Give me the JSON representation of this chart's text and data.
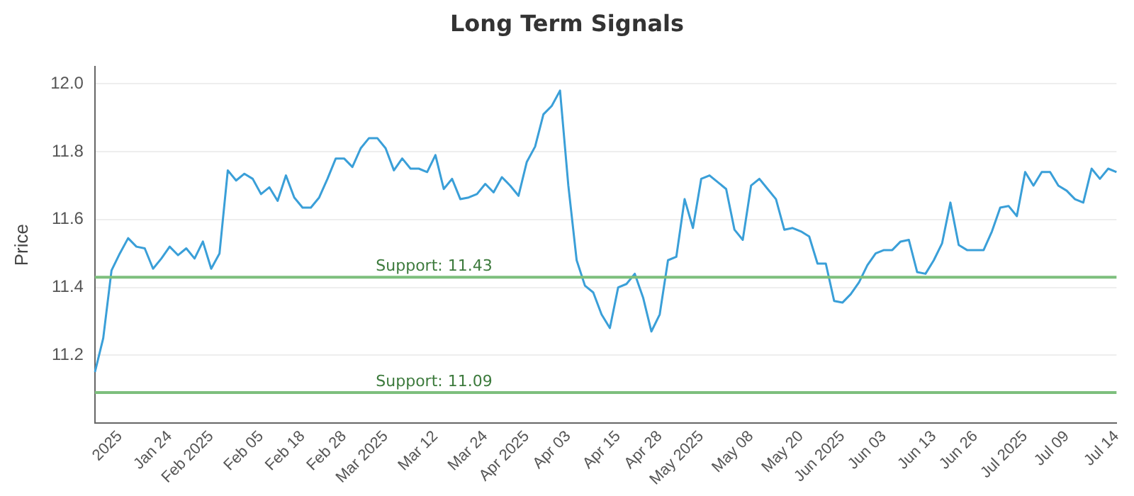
{
  "chart_data": {
    "type": "line",
    "title": "Long Term Signals",
    "ylabel": "Price",
    "categories": [
      null,
      null,
      null,
      "2025",
      null,
      null,
      null,
      null,
      null,
      "Jan 24",
      null,
      null,
      null,
      null,
      "Feb 2025",
      null,
      null,
      null,
      null,
      null,
      "Feb 05",
      null,
      null,
      null,
      null,
      "Feb 18",
      null,
      null,
      null,
      null,
      "Feb 28",
      null,
      null,
      null,
      null,
      "Mar 2025",
      null,
      null,
      null,
      null,
      null,
      "Mar 12",
      null,
      null,
      null,
      null,
      null,
      "Mar 24",
      null,
      null,
      null,
      null,
      "Apr 2025",
      null,
      null,
      null,
      null,
      "Apr 03",
      null,
      null,
      null,
      null,
      null,
      "Apr 15",
      null,
      null,
      null,
      null,
      "Apr 28",
      null,
      null,
      null,
      null,
      "May 2025",
      null,
      null,
      null,
      null,
      null,
      "May 08",
      null,
      null,
      null,
      null,
      null,
      "May 20",
      null,
      null,
      null,
      null,
      "Jun 2025",
      null,
      null,
      null,
      null,
      "Jun 03",
      null,
      null,
      null,
      null,
      null,
      "Jun 13",
      null,
      null,
      null,
      null,
      "Jun 26",
      null,
      null,
      null,
      null,
      null,
      "Jul 2025",
      null,
      null,
      null,
      null,
      "Jul 09",
      null,
      null,
      null,
      null,
      null,
      "Jul 14"
    ],
    "series": [
      {
        "color": "#3a9fd8",
        "values": [
          11.15,
          11.25,
          11.45,
          11.5,
          11.545,
          11.52,
          11.515,
          11.455,
          11.485,
          11.52,
          11.495,
          11.515,
          11.485,
          11.535,
          11.455,
          11.5,
          11.745,
          11.715,
          11.735,
          11.72,
          11.675,
          11.695,
          11.655,
          11.73,
          11.665,
          11.635,
          11.635,
          11.665,
          11.72,
          11.78,
          11.78,
          11.755,
          11.81,
          11.84,
          11.84,
          11.81,
          11.745,
          11.78,
          11.75,
          11.75,
          11.74,
          11.79,
          11.69,
          11.72,
          11.66,
          11.665,
          11.675,
          11.705,
          11.68,
          11.725,
          11.7,
          11.67,
          11.77,
          11.815,
          11.91,
          11.935,
          11.98,
          11.7,
          11.48,
          11.405,
          11.385,
          11.32,
          11.28,
          11.4,
          11.41,
          11.44,
          11.37,
          11.27,
          11.32,
          11.48,
          11.49,
          11.66,
          11.575,
          11.72,
          11.73,
          11.71,
          11.69,
          11.57,
          11.54,
          11.7,
          11.72,
          11.69,
          11.66,
          11.57,
          11.575,
          11.565,
          11.55,
          11.47,
          11.47,
          11.36,
          11.355,
          11.38,
          11.415,
          11.465,
          11.5,
          11.51,
          11.51,
          11.535,
          11.54,
          11.445,
          11.44,
          11.48,
          11.53,
          11.65,
          11.525,
          11.51,
          11.51,
          11.51,
          11.565,
          11.635,
          11.64,
          11.61,
          11.74,
          11.7,
          11.74,
          11.74,
          11.7,
          11.685,
          11.66,
          11.65,
          11.75,
          11.72,
          11.75,
          11.74
        ]
      }
    ],
    "ylim": [
      11.0,
      12.05
    ],
    "yticks": [
      11.2,
      11.4,
      11.6,
      11.8,
      {
        "value": 12,
        "label": "12.0"
      }
    ],
    "grid": "y",
    "marker": "none",
    "line_style": "solid",
    "ref_lines": [
      {
        "axis": "y",
        "value": 11.43,
        "label": "Support: 11.43",
        "color": "#7dbf7d"
      },
      {
        "axis": "y",
        "value": 11.09,
        "label": "Support: 11.09",
        "color": "#7dbf7d"
      }
    ]
  }
}
